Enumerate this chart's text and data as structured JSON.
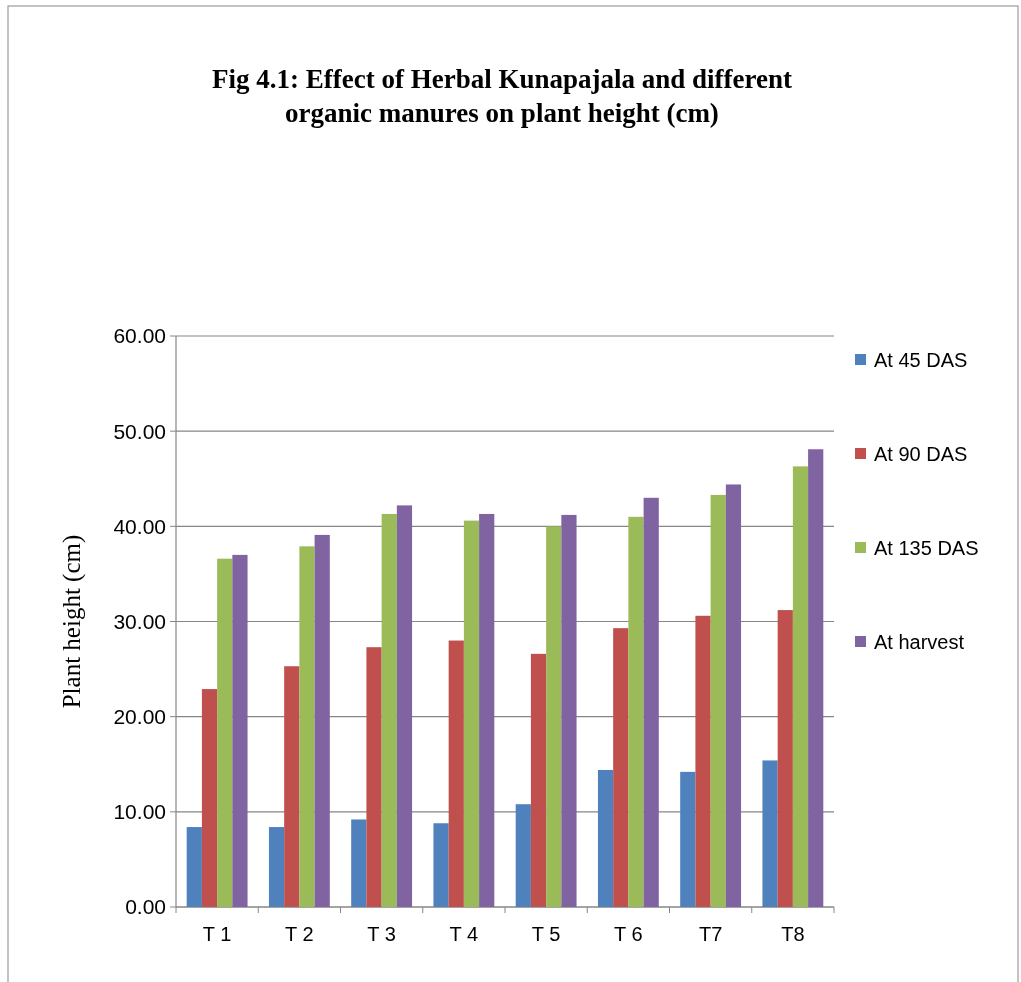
{
  "chart_data": {
    "type": "bar",
    "title": "Fig 4.1: Effect of Herbal Kunapajala and different organic manures on plant height (cm)",
    "ylabel": "Plant height  (cm)",
    "categories": [
      "T 1",
      "T 2",
      "T 3",
      "T 4",
      "T 5",
      "T 6",
      "T7",
      "T8"
    ],
    "series": [
      {
        "name": "At 45 DAS",
        "color": "#4f81bd",
        "values": [
          8.4,
          8.4,
          9.2,
          8.8,
          10.8,
          14.4,
          14.2,
          15.4
        ]
      },
      {
        "name": "At 90 DAS",
        "color": "#c0504d",
        "values": [
          22.9,
          25.3,
          27.3,
          28.0,
          26.6,
          29.3,
          30.6,
          31.2
        ]
      },
      {
        "name": "At 135 DAS",
        "color": "#9bbb59",
        "values": [
          36.6,
          37.9,
          41.3,
          40.6,
          40.0,
          41.0,
          43.3,
          46.3
        ]
      },
      {
        "name": "At harvest",
        "color": "#8064a2",
        "values": [
          37.0,
          39.1,
          42.2,
          41.3,
          41.2,
          43.0,
          44.4,
          48.1
        ]
      }
    ],
    "ylim": [
      0,
      60
    ],
    "yticks": [
      {
        "value": 0,
        "label": "0.00"
      },
      {
        "value": 10,
        "label": "10.00"
      },
      {
        "value": 20,
        "label": "20.00"
      },
      {
        "value": 30,
        "label": "30.00"
      },
      {
        "value": 40,
        "label": "40.00"
      },
      {
        "value": 50,
        "label": "50.00"
      },
      {
        "value": 60,
        "label": "60.00"
      }
    ],
    "grid": "y",
    "legend": "right"
  }
}
